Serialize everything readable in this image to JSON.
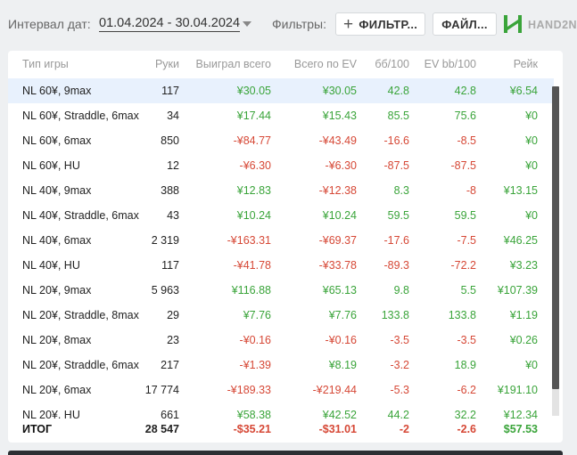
{
  "toolbar": {
    "interval_label": "Интервал дат:",
    "date_range": "01.04.2024 - 30.04.2024",
    "filters_label": "Фильтры:",
    "filter_button": "ФИЛЬТР...",
    "file_button": "ФАЙЛ...",
    "logo_text": "HAND2N"
  },
  "table": {
    "headers": [
      "Тип игры",
      "Руки",
      "Выиграл всего",
      "Всего по EV",
      "бб/100",
      "EV bb/100",
      "Рейк"
    ],
    "rows": [
      [
        "NL 60¥, 9max",
        "117",
        "¥30.05",
        "¥30.05",
        "42.8",
        "42.8",
        "¥6.54"
      ],
      [
        "NL 60¥, Straddle, 6max",
        "34",
        "¥17.44",
        "¥15.43",
        "85.5",
        "75.6",
        "¥0"
      ],
      [
        "NL 60¥, 6max",
        "850",
        "-¥84.77",
        "-¥43.49",
        "-16.6",
        "-8.5",
        "¥0"
      ],
      [
        "NL 60¥, HU",
        "12",
        "-¥6.30",
        "-¥6.30",
        "-87.5",
        "-87.5",
        "¥0"
      ],
      [
        "NL 40¥, 9max",
        "388",
        "¥12.83",
        "-¥12.38",
        "8.3",
        "-8",
        "¥13.15"
      ],
      [
        "NL 40¥, Straddle, 6max",
        "43",
        "¥10.24",
        "¥10.24",
        "59.5",
        "59.5",
        "¥0"
      ],
      [
        "NL 40¥, 6max",
        "2 319",
        "-¥163.31",
        "-¥69.37",
        "-17.6",
        "-7.5",
        "¥46.25"
      ],
      [
        "NL 40¥, HU",
        "117",
        "-¥41.78",
        "-¥33.78",
        "-89.3",
        "-72.2",
        "¥3.23"
      ],
      [
        "NL 20¥, 9max",
        "5 963",
        "¥116.88",
        "¥65.13",
        "9.8",
        "5.5",
        "¥107.39"
      ],
      [
        "NL 20¥, Straddle, 8max",
        "29",
        "¥7.76",
        "¥7.76",
        "133.8",
        "133.8",
        "¥1.19"
      ],
      [
        "NL 20¥, 8max",
        "23",
        "-¥0.16",
        "-¥0.16",
        "-3.5",
        "-3.5",
        "¥0.26"
      ],
      [
        "NL 20¥, Straddle, 6max",
        "217",
        "-¥1.39",
        "¥8.19",
        "-3.2",
        "18.9",
        "¥0"
      ],
      [
        "NL 20¥, 6max",
        "17 774",
        "-¥189.33",
        "-¥219.44",
        "-5.3",
        "-6.2",
        "¥191.10"
      ],
      [
        "NL 20¥. HU",
        "661",
        "¥58.38",
        "¥42.52",
        "44.2",
        "32.2",
        "¥12.34"
      ]
    ],
    "total": [
      "ИТОГ",
      "28 547",
      "-$35.21",
      "-$31.01",
      "-2",
      "-2.6",
      "$57.53"
    ]
  },
  "colors": {
    "positive": "#3aa43a",
    "negative": "#d64836",
    "highlight_row": "#e8f1fd",
    "brand": "#3aa43a"
  }
}
